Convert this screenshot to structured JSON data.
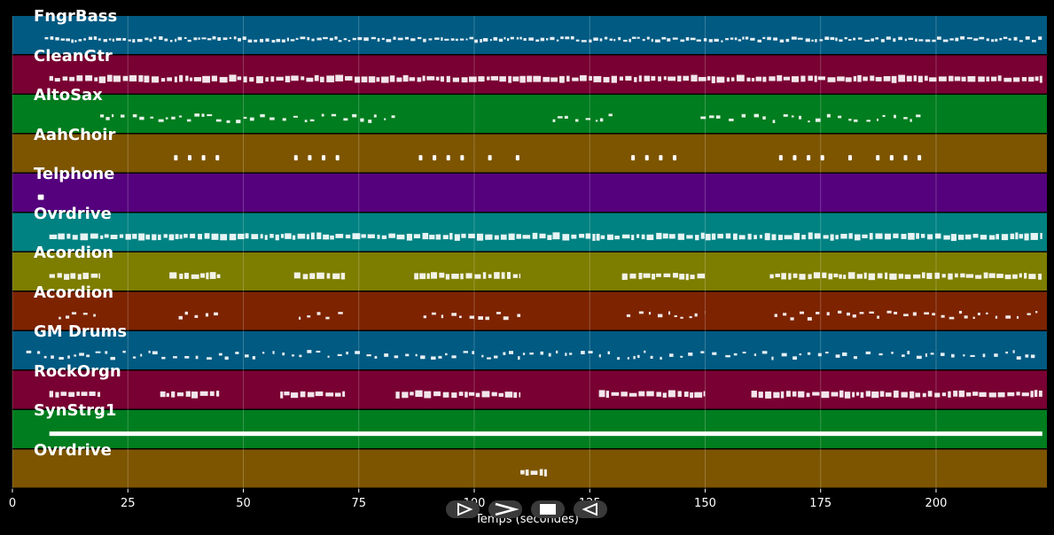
{
  "tracks": [
    {
      "name": "FngrBass",
      "color": "#005a82",
      "notes": [
        [
          7,
          223
        ]
      ],
      "style": "dense-squiggle"
    },
    {
      "name": "CleanGtr",
      "color": "#780032",
      "notes": [
        [
          8,
          223
        ]
      ],
      "style": "dense-block"
    },
    {
      "name": "AltoSax",
      "color": "#007d1e",
      "notes": [
        [
          19,
          83
        ],
        [
          117,
          130
        ],
        [
          149,
          198
        ]
      ],
      "style": "sparse"
    },
    {
      "name": "AahChoir",
      "color": "#7d5500",
      "notes": [
        [
          35,
          35.5
        ],
        [
          38,
          38.5
        ],
        [
          41,
          41.5
        ],
        [
          44,
          44.5
        ],
        [
          61,
          61.5
        ],
        [
          64,
          64.5
        ],
        [
          67,
          67.5
        ],
        [
          70,
          70.5
        ],
        [
          88,
          88.5
        ],
        [
          91,
          91.5
        ],
        [
          94,
          94.5
        ],
        [
          97,
          97.5
        ],
        [
          103,
          103.5
        ],
        [
          109,
          109.5
        ],
        [
          134,
          134.5
        ],
        [
          137,
          137.5
        ],
        [
          140,
          140.5
        ],
        [
          143,
          143.5
        ],
        [
          166,
          166.5
        ],
        [
          169,
          169.5
        ],
        [
          172,
          172.5
        ],
        [
          175,
          175.5
        ],
        [
          181,
          181.5
        ],
        [
          187,
          187.5
        ],
        [
          190,
          190.5
        ],
        [
          193,
          193.5
        ],
        [
          196,
          196.5
        ]
      ],
      "style": "dots"
    },
    {
      "name": "Telphone",
      "color": "#55007d",
      "notes": [
        [
          5.5,
          6.8
        ]
      ],
      "style": "dots"
    },
    {
      "name": "Ovrdrive",
      "color": "#008282",
      "notes": [
        [
          8,
          223
        ]
      ],
      "style": "dense-block"
    },
    {
      "name": "Acordion",
      "color": "#7d7d00",
      "notes": [
        [
          8,
          19
        ],
        [
          34,
          45
        ],
        [
          61,
          72
        ],
        [
          87,
          110
        ],
        [
          132,
          150
        ],
        [
          164,
          223
        ]
      ],
      "style": "dense-block"
    },
    {
      "name": "Acordion",
      "color": "#7d2300",
      "notes": [
        [
          10,
          19
        ],
        [
          36,
          45
        ],
        [
          62,
          72
        ],
        [
          89,
          110
        ],
        [
          133,
          150
        ],
        [
          165,
          223
        ]
      ],
      "style": "sparse"
    },
    {
      "name": "GM Drums",
      "color": "#005a82",
      "notes": [
        [
          3,
          222
        ]
      ],
      "style": "sparse"
    },
    {
      "name": "RockOrgn",
      "color": "#780032",
      "notes": [
        [
          8,
          19
        ],
        [
          32,
          45
        ],
        [
          58,
          72
        ],
        [
          83,
          110
        ],
        [
          127,
          150
        ],
        [
          160,
          223
        ]
      ],
      "style": "dense-block"
    },
    {
      "name": "SynStrg1",
      "color": "#007d1e",
      "notes": [
        [
          8,
          223
        ]
      ],
      "style": "solid"
    },
    {
      "name": "Ovrdrive",
      "color": "#7d5500",
      "notes": [
        [
          110,
          116
        ]
      ],
      "style": "dense-block"
    }
  ],
  "axis": {
    "xlabel": "Temps (secondes)",
    "xmin": 0,
    "xmax": 224,
    "ticks": [
      0,
      25,
      50,
      75,
      100,
      125,
      150,
      175,
      200
    ],
    "tick_labels": [
      "0",
      "25",
      "50",
      "75",
      "100",
      "125",
      "150",
      "175",
      "200"
    ],
    "grid": true
  },
  "controls": [
    {
      "name": "play-button",
      "icon": "play-outline-icon"
    },
    {
      "name": "fast-forward-button",
      "icon": "chevron-right-icon"
    },
    {
      "name": "stop-button",
      "icon": "stop-square-icon"
    },
    {
      "name": "rewind-button",
      "icon": "play-reverse-outline-icon"
    }
  ],
  "colors": {
    "background": "#000000",
    "note": "#ffffff",
    "grid": "#ffffff"
  }
}
